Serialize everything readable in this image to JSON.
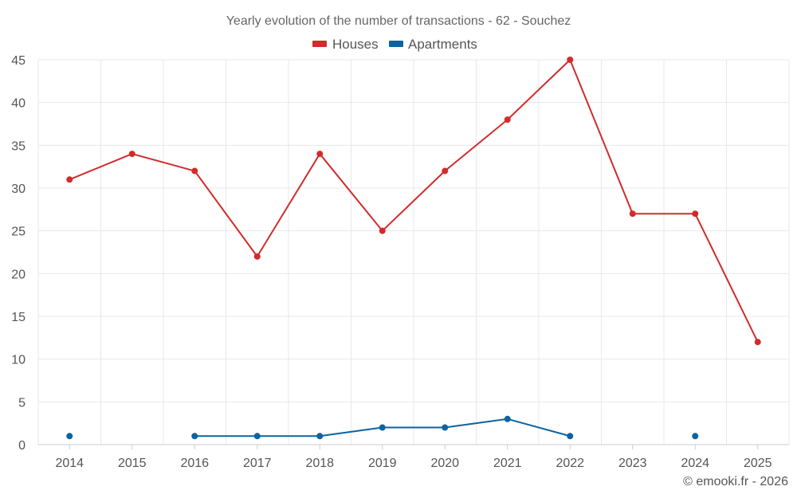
{
  "chart_data": {
    "type": "line",
    "title": "Yearly evolution of the number of transactions - 62 - Souchez",
    "categories": [
      "2014",
      "2015",
      "2016",
      "2017",
      "2018",
      "2019",
      "2020",
      "2021",
      "2022",
      "2023",
      "2024",
      "2025"
    ],
    "series": [
      {
        "name": "Houses",
        "color": "#d22b2b",
        "values": [
          31,
          34,
          32,
          22,
          34,
          25,
          32,
          38,
          45,
          27,
          27,
          12
        ]
      },
      {
        "name": "Apartments",
        "color": "#0c63a0",
        "values": [
          1,
          null,
          1,
          1,
          1,
          2,
          2,
          3,
          1,
          null,
          1,
          null
        ]
      }
    ],
    "ylim": [
      0,
      45
    ],
    "yticks": [
      "0",
      "5",
      "10",
      "15",
      "20",
      "25",
      "30",
      "35",
      "40",
      "45"
    ],
    "grid": true,
    "legend_position": "top-center",
    "xlabel": "",
    "ylabel": ""
  },
  "credit": "© emooki.fr - 2026"
}
